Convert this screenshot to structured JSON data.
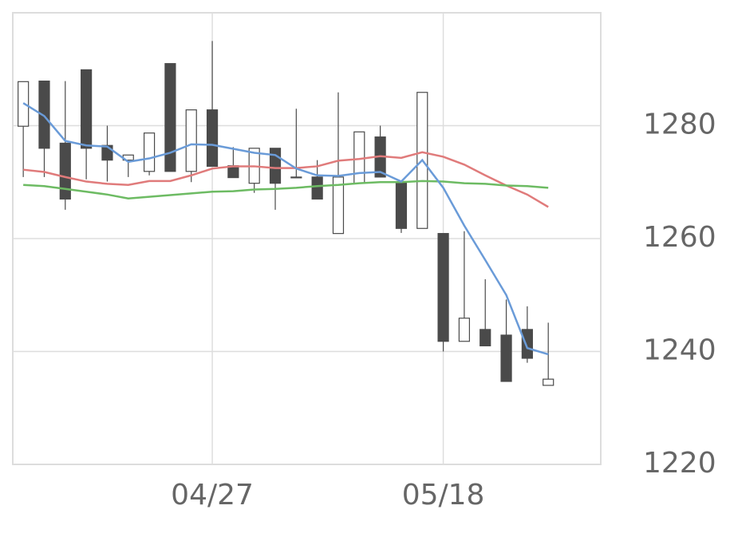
{
  "chart_data": {
    "type": "candlestick",
    "categories": [
      null,
      null,
      null,
      null,
      null,
      null,
      null,
      null,
      null,
      "04/27",
      null,
      null,
      null,
      null,
      null,
      null,
      null,
      null,
      null,
      null,
      "05/18",
      null,
      null,
      null,
      null,
      null,
      null,
      null
    ],
    "open": [
      1279.9,
      1287.9,
      1276.9,
      1289.9,
      1276.5,
      1273.9,
      1271.9,
      1291.0,
      1271.9,
      1282.8,
      1272.9,
      1269.8,
      1276.0,
      1270.9,
      1270.9,
      1260.9,
      1269.8,
      1278.0,
      1270.1,
      1261.8,
      1260.9,
      1241.8,
      1243.9,
      1242.9,
      1243.9,
      1234.0,
      null,
      null
    ],
    "high": [
      1287.8,
      1287.9,
      1287.9,
      1289.9,
      1280.0,
      1274.8,
      1278.7,
      1291.0,
      1282.8,
      1295.0,
      1276.2,
      1276.0,
      1276.0,
      1283.0,
      1273.9,
      1285.9,
      1278.9,
      1280.0,
      1270.1,
      1285.9,
      1260.9,
      1261.3,
      1252.8,
      1249.2,
      1248.0,
      1245.1,
      null,
      null
    ],
    "low": [
      1270.9,
      1270.9,
      1265.1,
      1270.5,
      1270.1,
      1270.9,
      1271.2,
      1271.9,
      1270.0,
      1272.8,
      1270.8,
      1268.1,
      1265.1,
      1270.8,
      1267.0,
      1260.9,
      1269.8,
      1270.9,
      1261.0,
      1261.8,
      1240.0,
      1241.8,
      1241.0,
      1234.7,
      1238.0,
      1234.0,
      null,
      null
    ],
    "close": [
      1287.8,
      1276.0,
      1267.0,
      1276.0,
      1273.9,
      1274.8,
      1278.7,
      1271.9,
      1282.8,
      1272.8,
      1270.8,
      1276.0,
      1269.8,
      1270.8,
      1267.0,
      1270.9,
      1278.9,
      1270.9,
      1261.8,
      1285.9,
      1241.8,
      1245.9,
      1241.0,
      1234.7,
      1238.8,
      1235.1,
      null,
      null
    ],
    "up_color": "#ffffff",
    "down_color": "#4a4a4a",
    "edge_color": "#4a4a4a",
    "series": [
      {
        "color": "#e07b7b",
        "values": [
          1272.2,
          1271.8,
          1270.9,
          1270.1,
          1269.7,
          1269.5,
          1270.2,
          1270.2,
          1271.2,
          1272.4,
          1272.8,
          1272.8,
          1272.5,
          1272.5,
          1272.8,
          1273.8,
          1274.1,
          1274.6,
          1274.3,
          1275.3,
          1274.5,
          1273.1,
          1271.2,
          1269.4,
          1267.8,
          1265.6,
          null,
          null
        ]
      },
      {
        "color": "#6dbb63",
        "values": [
          1269.5,
          1269.3,
          1268.8,
          1268.3,
          1267.8,
          1267.1,
          1267.4,
          1267.7,
          1268.0,
          1268.3,
          1268.4,
          1268.7,
          1268.8,
          1269.0,
          1269.3,
          1269.5,
          1269.8,
          1270.0,
          1270.0,
          1270.2,
          1270.1,
          1269.8,
          1269.7,
          1269.4,
          1269.3,
          1269.0,
          null,
          null
        ]
      },
      {
        "color": "#6a9bd8",
        "values": [
          1284.0,
          1281.7,
          1277.3,
          1276.5,
          1276.3,
          1273.6,
          1274.2,
          1275.2,
          1276.7,
          1276.6,
          1275.9,
          1275.2,
          1274.8,
          1272.4,
          1271.2,
          1271.1,
          1271.6,
          1271.8,
          1270.1,
          1273.9,
          1269.0,
          1262.3,
          1256.2,
          1250.0,
          1240.6,
          1239.5,
          null,
          null
        ]
      }
    ],
    "ylim": [
      1220,
      1300
    ],
    "yticks": [
      1220,
      1240,
      1260,
      1280
    ],
    "grid": true
  }
}
